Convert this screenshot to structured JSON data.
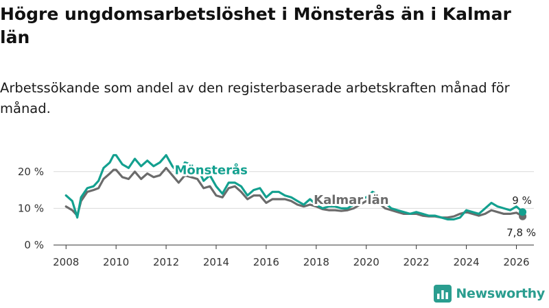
{
  "title": "Högre ungdomsarbetslöshet i Mönsterås än i Kalmar län",
  "subtitle": "Arbetssökande som andel av den registerbaserade arbetskraften månad för månad.",
  "brand": {
    "name": "Newsworthy",
    "icon": "bar-chart-logo-icon"
  },
  "colors": {
    "monsteras": "#13a08f",
    "kalmar": "#6b6b6b",
    "grid": "#d9d9d9",
    "axis": "#333333"
  },
  "chart_data": {
    "type": "line",
    "title": "Högre ungdomsarbetslöshet i Mönsterås än i Kalmar län",
    "xlabel": "",
    "ylabel": "",
    "xlim": [
      2007.5,
      2026.7
    ],
    "ylim": [
      0,
      25
    ],
    "x_ticks": [
      2008,
      2010,
      2012,
      2014,
      2016,
      2018,
      2020,
      2022,
      2024,
      2026
    ],
    "x_tick_labels": [
      "2008",
      "2010",
      "2012",
      "2014",
      "2016",
      "2018",
      "2020",
      "2022",
      "2024",
      "2026"
    ],
    "y_ticks": [
      0,
      10,
      20
    ],
    "y_tick_labels": [
      "0 %",
      "10 %",
      "20 %"
    ],
    "series": [
      {
        "name": "Mönsterås",
        "end_label": "9 %",
        "x": [
          2008.0,
          2008.25,
          2008.45,
          2008.6,
          2008.85,
          2009.1,
          2009.3,
          2009.5,
          2009.75,
          2009.9,
          2010.0,
          2010.25,
          2010.5,
          2010.75,
          2011.0,
          2011.25,
          2011.5,
          2011.75,
          2012.0,
          2012.25,
          2012.5,
          2012.75,
          2013.0,
          2013.25,
          2013.5,
          2013.75,
          2014.0,
          2014.25,
          2014.5,
          2014.75,
          2015.0,
          2015.25,
          2015.5,
          2015.75,
          2016.0,
          2016.25,
          2016.5,
          2016.75,
          2017.0,
          2017.25,
          2017.5,
          2017.75,
          2018.0,
          2018.25,
          2018.5,
          2018.75,
          2019.0,
          2019.25,
          2019.5,
          2019.75,
          2020.0,
          2020.25,
          2020.5,
          2020.75,
          2021.0,
          2021.25,
          2021.5,
          2021.75,
          2022.0,
          2022.25,
          2022.5,
          2022.75,
          2023.0,
          2023.25,
          2023.5,
          2023.75,
          2024.0,
          2024.25,
          2024.5,
          2024.75,
          2025.0,
          2025.25,
          2025.5,
          2025.75,
          2026.0,
          2026.25
        ],
        "values": [
          13.5,
          12.0,
          7.5,
          13.0,
          15.5,
          16.0,
          17.5,
          21.0,
          22.5,
          24.5,
          24.5,
          22.0,
          21.0,
          23.5,
          21.5,
          23.0,
          21.5,
          22.5,
          24.5,
          21.5,
          19.5,
          22.5,
          22.0,
          21.0,
          17.5,
          19.0,
          16.0,
          14.0,
          17.0,
          17.0,
          16.0,
          13.5,
          15.0,
          15.5,
          13.0,
          14.5,
          14.5,
          13.5,
          13.0,
          12.0,
          11.0,
          12.5,
          11.0,
          10.0,
          10.5,
          10.5,
          10.0,
          10.0,
          11.0,
          12.5,
          13.0,
          14.5,
          13.5,
          11.5,
          10.0,
          9.5,
          9.0,
          8.5,
          9.0,
          8.5,
          8.0,
          8.0,
          7.5,
          7.0,
          7.0,
          7.5,
          9.5,
          9.0,
          8.5,
          10.0,
          11.5,
          10.5,
          10.0,
          9.5,
          10.5,
          9.0
        ]
      },
      {
        "name": "Kalmar län",
        "end_label": "7,8 %",
        "x": [
          2008.0,
          2008.25,
          2008.45,
          2008.6,
          2008.85,
          2009.1,
          2009.3,
          2009.5,
          2009.75,
          2009.9,
          2010.0,
          2010.25,
          2010.5,
          2010.75,
          2011.0,
          2011.25,
          2011.5,
          2011.75,
          2012.0,
          2012.25,
          2012.5,
          2012.75,
          2013.0,
          2013.25,
          2013.5,
          2013.75,
          2014.0,
          2014.25,
          2014.5,
          2014.75,
          2015.0,
          2015.25,
          2015.5,
          2015.75,
          2016.0,
          2016.25,
          2016.5,
          2016.75,
          2017.0,
          2017.25,
          2017.5,
          2017.75,
          2018.0,
          2018.25,
          2018.5,
          2018.75,
          2019.0,
          2019.25,
          2019.5,
          2019.75,
          2020.0,
          2020.25,
          2020.5,
          2020.75,
          2021.0,
          2021.25,
          2021.5,
          2021.75,
          2022.0,
          2022.25,
          2022.5,
          2022.75,
          2023.0,
          2023.25,
          2023.5,
          2023.75,
          2024.0,
          2024.25,
          2024.5,
          2024.75,
          2025.0,
          2025.25,
          2025.5,
          2025.75,
          2026.0,
          2026.25
        ],
        "values": [
          10.5,
          9.5,
          8.0,
          12.0,
          14.5,
          15.0,
          15.5,
          18.0,
          19.5,
          20.5,
          20.5,
          18.5,
          18.0,
          20.0,
          18.0,
          19.5,
          18.5,
          19.0,
          21.0,
          19.0,
          17.0,
          19.0,
          18.5,
          18.0,
          15.5,
          16.0,
          13.5,
          13.0,
          15.5,
          16.0,
          14.5,
          12.5,
          13.5,
          13.5,
          11.5,
          12.5,
          12.5,
          12.5,
          12.0,
          11.0,
          10.5,
          11.0,
          10.5,
          9.8,
          9.5,
          9.5,
          9.3,
          9.5,
          10.0,
          11.0,
          12.0,
          12.5,
          11.5,
          10.0,
          9.5,
          9.0,
          8.5,
          8.5,
          8.5,
          8.0,
          7.8,
          7.8,
          7.5,
          7.5,
          7.8,
          8.5,
          9.0,
          8.5,
          8.0,
          8.5,
          9.5,
          9.0,
          8.5,
          8.5,
          8.8,
          7.8
        ]
      }
    ],
    "inline_labels": [
      {
        "series": "Mönsterås",
        "text": "Mönsterås",
        "x": 2013.8,
        "y": 19.3
      },
      {
        "series": "Kalmar län",
        "text": "Kalmar län",
        "x": 2019.4,
        "y": 11.2
      }
    ]
  }
}
